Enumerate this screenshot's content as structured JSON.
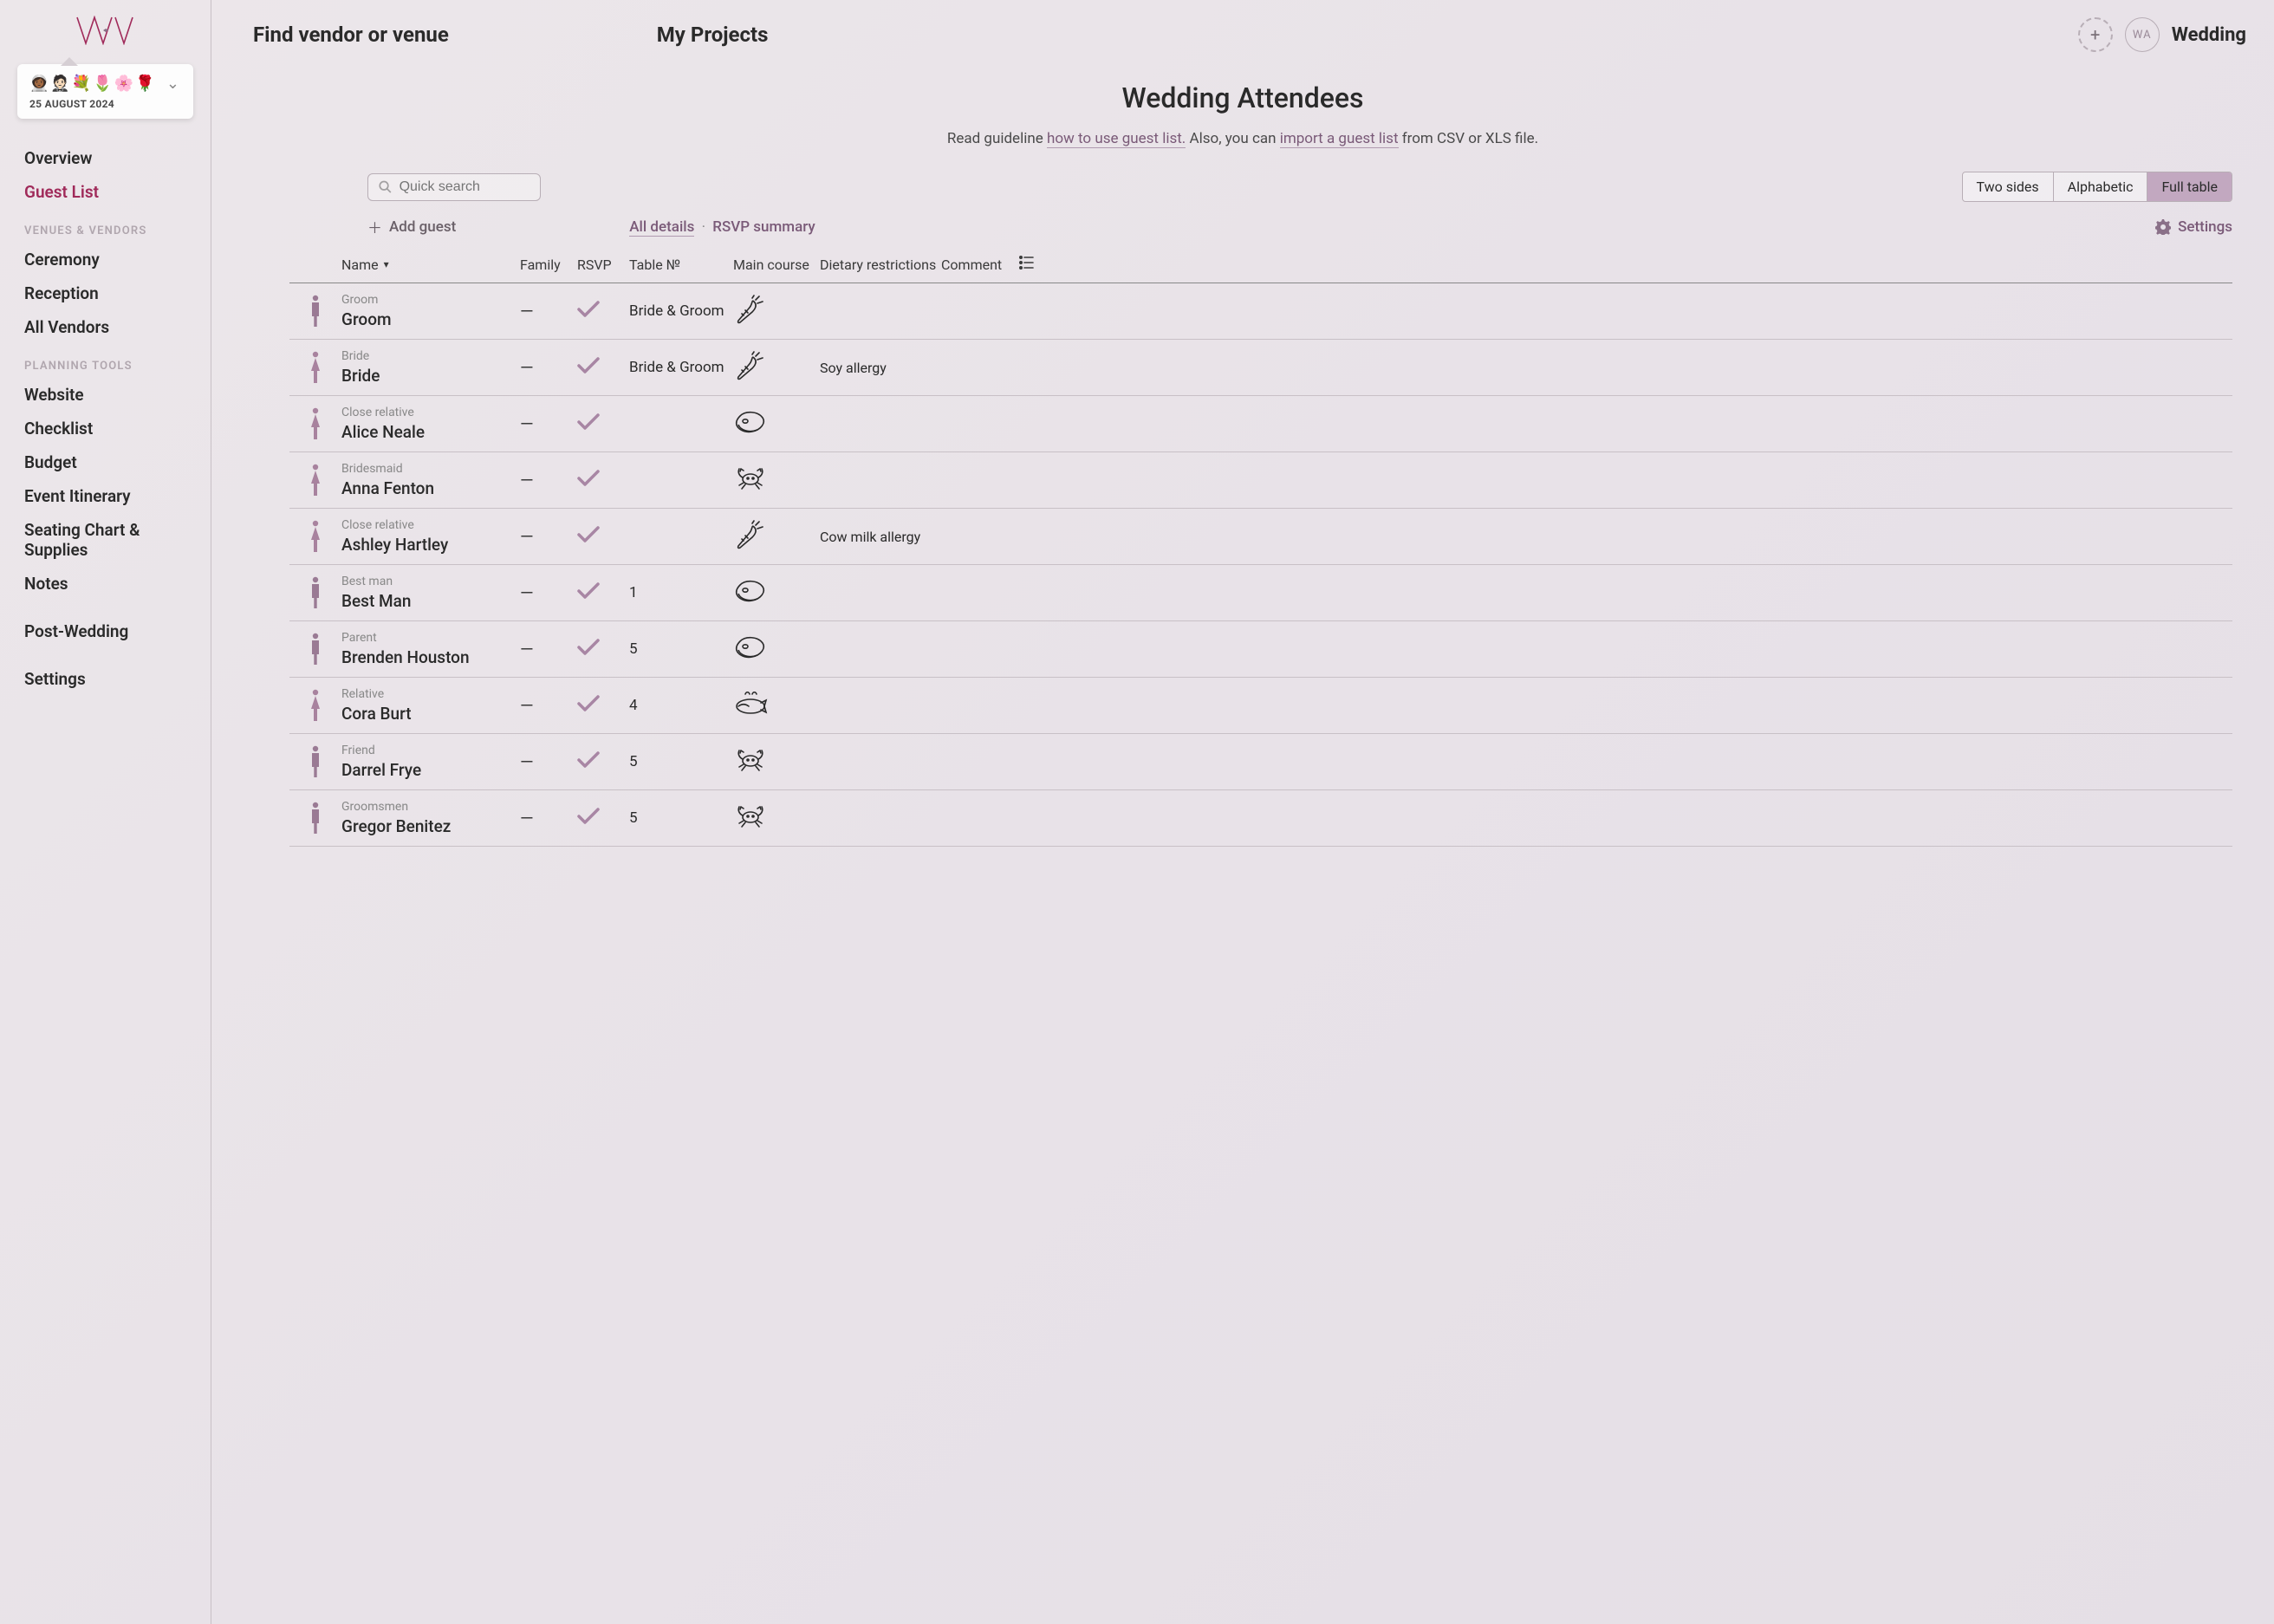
{
  "brand": "WA",
  "project": {
    "emojis": "👩🏾‍🚀🤵🏻💐🌷🌸🌹",
    "date": "25 AUGUST 2024"
  },
  "nav": {
    "overview": "Overview",
    "guestlist": "Guest List",
    "section_vendors": "VENUES & VENDORS",
    "ceremony": "Ceremony",
    "reception": "Reception",
    "allvendors": "All Vendors",
    "section_tools": "PLANNING TOOLS",
    "website": "Website",
    "checklist": "Checklist",
    "budget": "Budget",
    "itinerary": "Event Itinerary",
    "seating": "Seating Chart & Supplies",
    "notes": "Notes",
    "postwedding": "Post-Wedding",
    "settings": "Settings"
  },
  "top": {
    "find": "Find vendor or venue",
    "projects": "My Projects",
    "avatar": "WA",
    "wedding": "Wedding"
  },
  "page": {
    "title": "Wedding Attendees",
    "guide_pre": "Read guideline ",
    "guide_link": "how to use guest list.",
    "guide_mid": " Also, you can ",
    "import_link": "import a guest list",
    "guide_post": " from CSV or XLS file."
  },
  "search_placeholder": "Quick search",
  "seg": {
    "two": "Two sides",
    "alpha": "Alphabetic",
    "full": "Full table"
  },
  "sub": {
    "add": "Add guest",
    "all": "All details",
    "rsvp": "RSVP summary",
    "settings": "Settings"
  },
  "cols": {
    "name": "Name",
    "family": "Family",
    "rsvp": "RSVP",
    "table": "Table №",
    "main": "Main course",
    "diet": "Dietary restrictions",
    "comment": "Comment"
  },
  "guests": [
    {
      "role": "Groom",
      "name": "Groom",
      "gender": "m",
      "family": "—",
      "rsvp": true,
      "table": "Bride & Groom",
      "meal": "carrot",
      "diet": ""
    },
    {
      "role": "Bride",
      "name": "Bride",
      "gender": "f",
      "family": "—",
      "rsvp": true,
      "table": "Bride & Groom",
      "meal": "carrot",
      "diet": "Soy allergy"
    },
    {
      "role": "Close relative",
      "name": "Alice Neale",
      "gender": "f",
      "family": "—",
      "rsvp": true,
      "table": "",
      "meal": "steak",
      "diet": ""
    },
    {
      "role": "Bridesmaid",
      "name": "Anna Fenton",
      "gender": "f",
      "family": "—",
      "rsvp": true,
      "table": "",
      "meal": "crab",
      "diet": ""
    },
    {
      "role": "Close relative",
      "name": "Ashley Hartley",
      "gender": "f",
      "family": "—",
      "rsvp": true,
      "table": "",
      "meal": "carrot",
      "diet": "Cow milk allergy"
    },
    {
      "role": "Best man",
      "name": "Best Man",
      "gender": "m",
      "family": "—",
      "rsvp": true,
      "table": "1",
      "meal": "steak",
      "diet": ""
    },
    {
      "role": "Parent",
      "name": "Brenden Houston",
      "gender": "m",
      "family": "—",
      "rsvp": true,
      "table": "5",
      "meal": "steak",
      "diet": ""
    },
    {
      "role": "Relative",
      "name": "Cora Burt",
      "gender": "f",
      "family": "—",
      "rsvp": true,
      "table": "4",
      "meal": "fish",
      "diet": ""
    },
    {
      "role": "Friend",
      "name": "Darrel Frye",
      "gender": "m",
      "family": "—",
      "rsvp": true,
      "table": "5",
      "meal": "crab",
      "diet": ""
    },
    {
      "role": "Groomsmen",
      "name": "Gregor Benitez",
      "gender": "m",
      "family": "—",
      "rsvp": true,
      "table": "5",
      "meal": "crab",
      "diet": ""
    }
  ],
  "colors": {
    "accent": "#a02a5a",
    "link": "#7a5a78",
    "segActive": "#c2a8c0",
    "figureM": "#9a7a94",
    "figureF": "#a8829e",
    "check": "#a886a4"
  }
}
